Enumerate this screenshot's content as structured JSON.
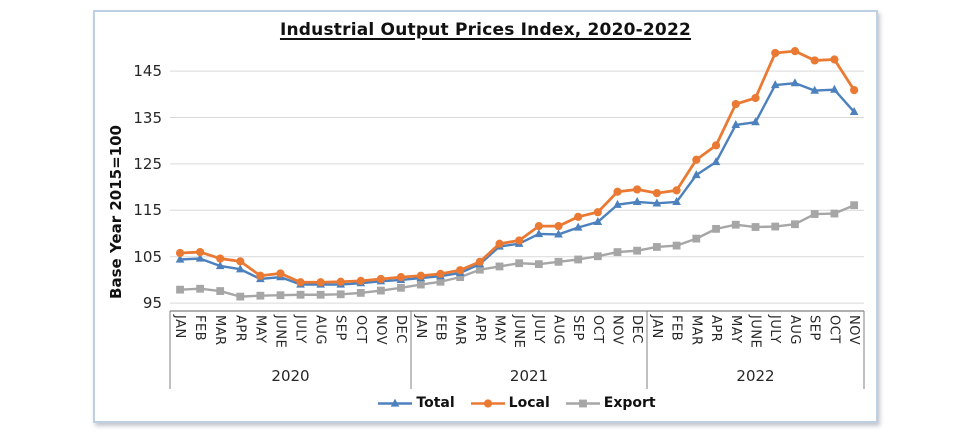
{
  "chart_data": {
    "type": "line",
    "title": "Industrial Output Prices Index, 2020-2022",
    "ylabel": "Base Year 2015=100",
    "xlabel": "",
    "ylim": [
      93.3,
      150.5
    ],
    "yticks": [
      95,
      105,
      115,
      125,
      135,
      145
    ],
    "grid": true,
    "legend_position": "bottom",
    "year_groups": [
      {
        "year": "2020",
        "months": [
          "JAN",
          "FEB",
          "MAR",
          "APR",
          "MAY",
          "JUNE",
          "JULY",
          "AUG",
          "SEP",
          "OCT",
          "NOV",
          "DEC"
        ]
      },
      {
        "year": "2021",
        "months": [
          "JAN",
          "FEB",
          "MAR",
          "APR",
          "MAY",
          "JUNE",
          "JULY",
          "AUG",
          "SEP",
          "OCT",
          "NOV",
          "DEC"
        ]
      },
      {
        "year": "2022",
        "months": [
          "JAN",
          "FEB",
          "MAR",
          "APR",
          "MAY",
          "JUNE",
          "JULY",
          "AUG",
          "SEP",
          "OCT",
          "NOV"
        ]
      }
    ],
    "series": [
      {
        "name": "Total",
        "color": "#4d81be",
        "marker": "triangle",
        "values": [
          104.4,
          104.6,
          103.0,
          102.3,
          100.2,
          100.6,
          99.0,
          99.0,
          99.0,
          99.3,
          99.7,
          100.0,
          100.4,
          100.8,
          101.5,
          103.4,
          107.2,
          107.8,
          109.9,
          109.8,
          111.3,
          112.5,
          116.2,
          116.8,
          116.5,
          116.8,
          122.6,
          125.4,
          133.4,
          134.0,
          142.0,
          142.4,
          140.8,
          141.0,
          136.2
        ]
      },
      {
        "name": "Local",
        "color": "#ea7a33",
        "marker": "circle",
        "values": [
          105.8,
          106.0,
          104.6,
          104.0,
          100.9,
          101.4,
          99.5,
          99.5,
          99.6,
          99.8,
          100.2,
          100.6,
          100.9,
          101.3,
          102.1,
          103.9,
          107.8,
          108.5,
          111.6,
          111.6,
          113.6,
          114.6,
          119.0,
          119.5,
          118.7,
          119.3,
          125.9,
          129.0,
          137.9,
          139.2,
          148.9,
          149.3,
          147.3,
          147.5,
          140.9
        ]
      },
      {
        "name": "Export",
        "color": "#a6a6a6",
        "marker": "square",
        "values": [
          97.9,
          98.1,
          97.6,
          96.4,
          96.6,
          96.7,
          96.8,
          96.8,
          96.9,
          97.2,
          97.7,
          98.3,
          99.0,
          99.6,
          100.6,
          102.2,
          102.9,
          103.6,
          103.4,
          103.9,
          104.4,
          105.1,
          106.0,
          106.3,
          107.1,
          107.4,
          108.9,
          111.0,
          111.9,
          111.4,
          111.5,
          112.0,
          114.2,
          114.3,
          116.1
        ]
      }
    ],
    "colors": {
      "gridline": "#d9d9d9",
      "axis_line": "#808080",
      "frame_border": "#bdd0e2",
      "text": "#262626"
    }
  }
}
